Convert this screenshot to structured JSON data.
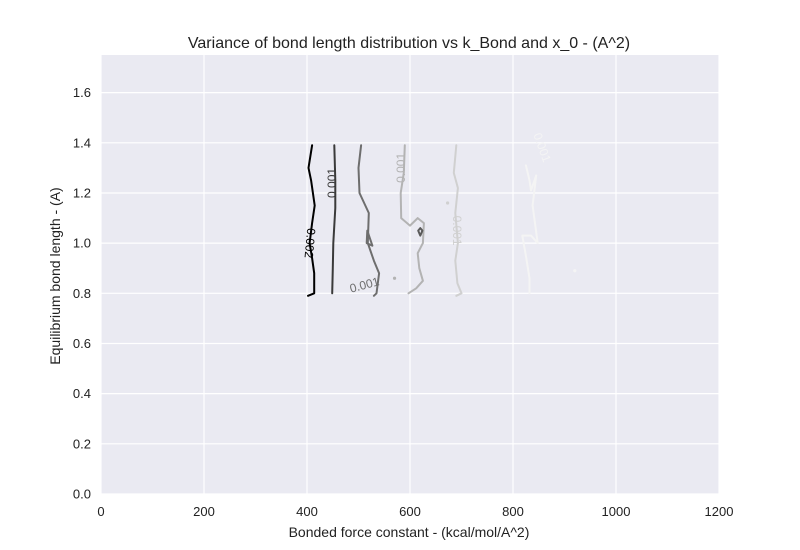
{
  "chart_data": {
    "type": "contour",
    "title": "Variance of bond length distribution vs k_Bond and x_0 - (A^2)",
    "xlabel": "Bonded force constant - (kcal/mol/A^2)",
    "ylabel": "Equilibrium bond length - (A)",
    "xlim": [
      0,
      1200
    ],
    "ylim": [
      0,
      1.75
    ],
    "xticks": [
      "0",
      "200",
      "400",
      "600",
      "800",
      "1000",
      "1200"
    ],
    "xtick_values": [
      0,
      200,
      400,
      600,
      800,
      1000,
      1200
    ],
    "yticks": [
      "0.0",
      "0.2",
      "0.4",
      "0.6",
      "0.8",
      "1.0",
      "1.2",
      "1.4",
      "1.6"
    ],
    "ytick_values": [
      0,
      0.2,
      0.4,
      0.6,
      0.8,
      1.0,
      1.2,
      1.4,
      1.6
    ],
    "grid": true,
    "background": "#eaeaf2",
    "contours": [
      {
        "color": "#000000",
        "points": [
          [
            410,
            1.39
          ],
          [
            403,
            1.3
          ],
          [
            408,
            1.25
          ],
          [
            415,
            1.15
          ],
          [
            410,
            1.08
          ],
          [
            405,
            1.0
          ],
          [
            410,
            0.94
          ],
          [
            414,
            0.88
          ],
          [
            414,
            0.8
          ],
          [
            402,
            0.79
          ]
        ]
      },
      {
        "color": "#3a3a3a",
        "points": [
          [
            453,
            1.39
          ],
          [
            455,
            1.25
          ],
          [
            455,
            1.14
          ],
          [
            451,
            1.0
          ],
          [
            450,
            0.9
          ],
          [
            449,
            0.8
          ]
        ]
      },
      {
        "color": "#6e6e6e",
        "points": [
          [
            505,
            1.39
          ],
          [
            500,
            1.3
          ],
          [
            502,
            1.2
          ],
          [
            520,
            1.12
          ],
          [
            518,
            1.0
          ],
          [
            530,
            0.93
          ],
          [
            540,
            0.88
          ],
          [
            535,
            0.8
          ],
          [
            530,
            0.79
          ]
        ]
      },
      {
        "color": "#6e6e6e",
        "points": [
          [
            517,
            1.05
          ],
          [
            522,
            1.02
          ],
          [
            527,
            0.99
          ],
          [
            516,
            1.0
          ],
          [
            517,
            1.05
          ]
        ],
        "closed": true
      },
      {
        "color": "#b3b3b3",
        "points": [
          [
            590,
            1.39
          ],
          [
            588,
            1.28
          ],
          [
            582,
            1.2
          ],
          [
            583,
            1.1
          ],
          [
            600,
            1.07
          ],
          [
            615,
            1.1
          ],
          [
            627,
            1.08
          ],
          [
            625,
            1.0
          ],
          [
            615,
            0.96
          ],
          [
            618,
            0.9
          ],
          [
            625,
            0.85
          ],
          [
            612,
            0.82
          ],
          [
            597,
            0.8
          ]
        ]
      },
      {
        "color": "#5a5a5a",
        "points": [
          [
            620,
            1.06
          ],
          [
            624,
            1.05
          ],
          [
            620,
            1.03
          ],
          [
            616,
            1.05
          ],
          [
            620,
            1.06
          ]
        ],
        "closed": true
      },
      {
        "color": "#d0d0d0",
        "points": [
          [
            690,
            1.39
          ],
          [
            685,
            1.28
          ],
          [
            693,
            1.22
          ],
          [
            688,
            1.12
          ],
          [
            693,
            1.0
          ],
          [
            688,
            0.93
          ],
          [
            692,
            0.84
          ],
          [
            700,
            0.8
          ],
          [
            690,
            0.79
          ]
        ]
      },
      {
        "color": "#f4f4f4",
        "points": [
          [
            825,
            1.31
          ],
          [
            832,
            1.25
          ],
          [
            835,
            1.21
          ],
          [
            845,
            1.27
          ],
          [
            838,
            1.15
          ],
          [
            848,
            1.0
          ],
          [
            835,
            1.03
          ],
          [
            818,
            1.03
          ],
          [
            825,
            0.95
          ],
          [
            832,
            0.86
          ],
          [
            832,
            0.8
          ]
        ]
      }
    ],
    "contour_labels": [
      {
        "text": "0.002",
        "x": 404,
        "y": 1.0,
        "rotation": 95,
        "color": "#000000"
      },
      {
        "text": "0.001",
        "x": 450,
        "y": 1.24,
        "rotation": -90,
        "color": "#3a3a3a"
      },
      {
        "text": "0.001",
        "x": 512,
        "y": 0.83,
        "rotation": -15,
        "color": "#6e6e6e"
      },
      {
        "text": "0.001",
        "x": 584,
        "y": 1.3,
        "rotation": -90,
        "color": "#b3b3b3"
      },
      {
        "text": "0.001",
        "x": 690,
        "y": 1.05,
        "rotation": 90,
        "color": "#d0d0d0"
      },
      {
        "text": "0.001",
        "x": 855,
        "y": 1.38,
        "rotation": 70,
        "color": "#f4f4f4"
      }
    ],
    "stray_points": [
      {
        "x": 570,
        "y": 0.86,
        "color": "#b3b3b3"
      },
      {
        "x": 673,
        "y": 1.16,
        "color": "#d0d0d0"
      },
      {
        "x": 920,
        "y": 0.89,
        "color": "#f4f4f4"
      }
    ]
  }
}
